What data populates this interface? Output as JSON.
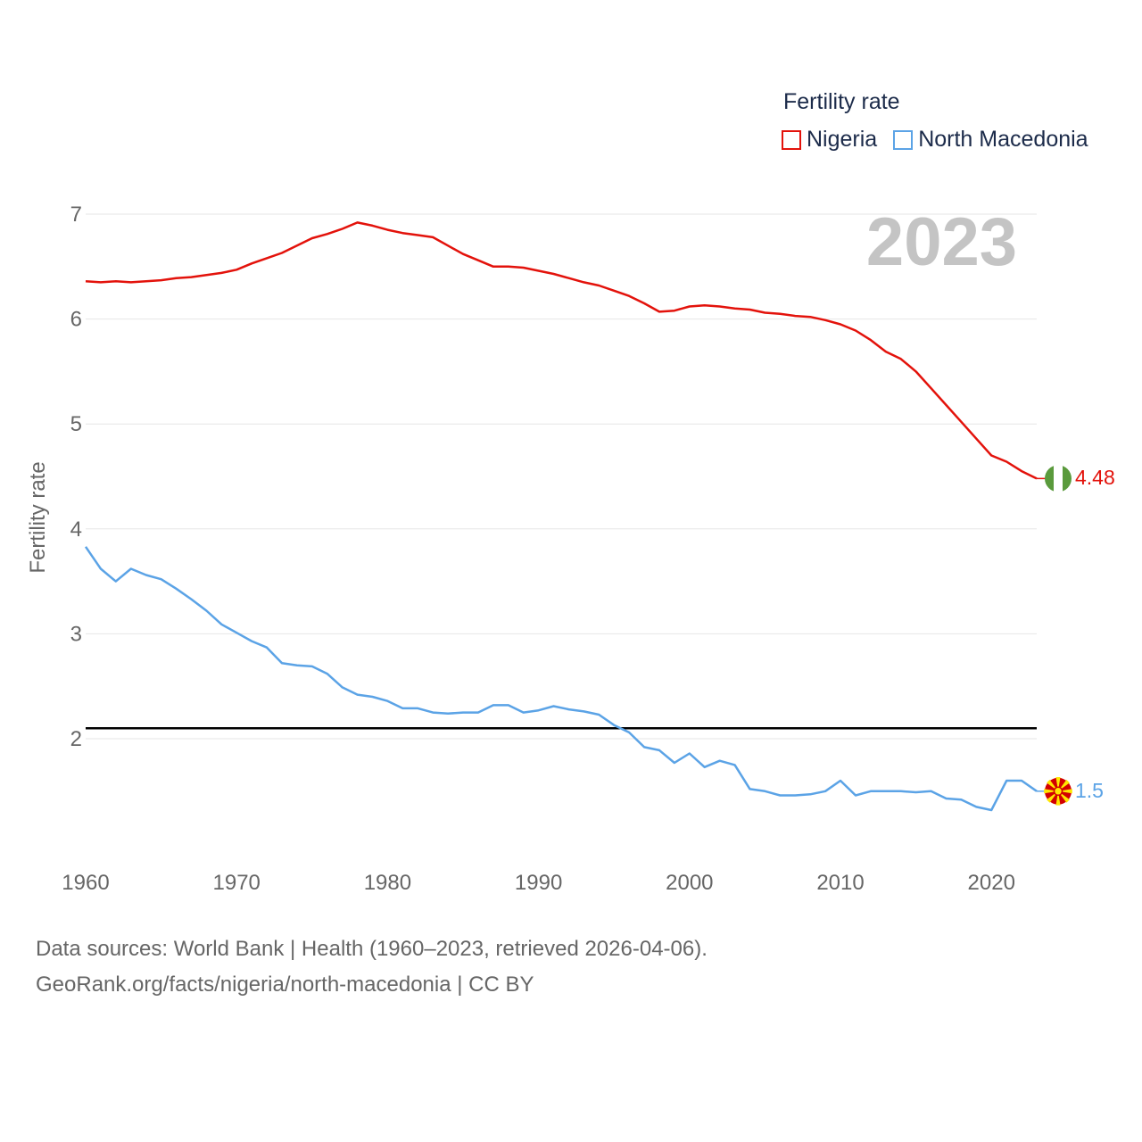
{
  "chart_data": {
    "type": "line",
    "title": "2023",
    "legend_title": "Fertility rate",
    "ylabel": "Fertility rate",
    "xlabel": "",
    "xlim": [
      1960,
      2023
    ],
    "ylim": [
      0.7,
      7.2
    ],
    "yticks": [
      2,
      3,
      4,
      5,
      6,
      7
    ],
    "xticks": [
      1960,
      1970,
      1980,
      1990,
      2000,
      2010,
      2020
    ],
    "reference_line": 2.1,
    "grid": true,
    "legend_position": "top-right",
    "x": [
      1960,
      1961,
      1962,
      1963,
      1964,
      1965,
      1966,
      1967,
      1968,
      1969,
      1970,
      1971,
      1972,
      1973,
      1974,
      1975,
      1976,
      1977,
      1978,
      1979,
      1980,
      1981,
      1982,
      1983,
      1984,
      1985,
      1986,
      1987,
      1988,
      1989,
      1990,
      1991,
      1992,
      1993,
      1994,
      1995,
      1996,
      1997,
      1998,
      1999,
      2000,
      2001,
      2002,
      2003,
      2004,
      2005,
      2006,
      2007,
      2008,
      2009,
      2010,
      2011,
      2012,
      2013,
      2014,
      2015,
      2016,
      2017,
      2018,
      2019,
      2020,
      2021,
      2022,
      2023
    ],
    "series": [
      {
        "name": "Nigeria",
        "color": "#e3120b",
        "end_label": "4.48",
        "values": [
          6.36,
          6.35,
          6.36,
          6.35,
          6.36,
          6.37,
          6.39,
          6.4,
          6.42,
          6.44,
          6.47,
          6.53,
          6.58,
          6.63,
          6.7,
          6.77,
          6.81,
          6.86,
          6.92,
          6.89,
          6.85,
          6.82,
          6.8,
          6.78,
          6.7,
          6.62,
          6.56,
          6.5,
          6.5,
          6.49,
          6.46,
          6.43,
          6.39,
          6.35,
          6.32,
          6.27,
          6.22,
          6.15,
          6.07,
          6.08,
          6.12,
          6.13,
          6.12,
          6.1,
          6.09,
          6.06,
          6.05,
          6.03,
          6.02,
          5.99,
          5.95,
          5.89,
          5.8,
          5.69,
          5.62,
          5.5,
          5.34,
          5.18,
          5.02,
          4.86,
          4.7,
          4.64,
          4.55,
          4.48
        ]
      },
      {
        "name": "North Macedonia",
        "color": "#5ba3e6",
        "end_label": "1.5",
        "values": [
          3.83,
          3.62,
          3.5,
          3.62,
          3.56,
          3.52,
          3.43,
          3.33,
          3.22,
          3.09,
          3.01,
          2.93,
          2.87,
          2.72,
          2.7,
          2.69,
          2.62,
          2.49,
          2.42,
          2.4,
          2.36,
          2.29,
          2.29,
          2.25,
          2.24,
          2.25,
          2.25,
          2.32,
          2.32,
          2.25,
          2.27,
          2.31,
          2.28,
          2.26,
          2.23,
          2.13,
          2.06,
          1.92,
          1.89,
          1.77,
          1.86,
          1.73,
          1.79,
          1.75,
          1.52,
          1.5,
          1.46,
          1.46,
          1.47,
          1.5,
          1.6,
          1.46,
          1.5,
          1.5,
          1.5,
          1.49,
          1.5,
          1.43,
          1.42,
          1.35,
          1.32,
          1.6,
          1.6,
          1.5
        ]
      }
    ]
  },
  "footer": {
    "line1": "Data sources: World Bank | Health (1960–2023, retrieved 2026-04-06).",
    "line2": "GeoRank.org/facts/nigeria/north-macedonia | CC BY"
  }
}
